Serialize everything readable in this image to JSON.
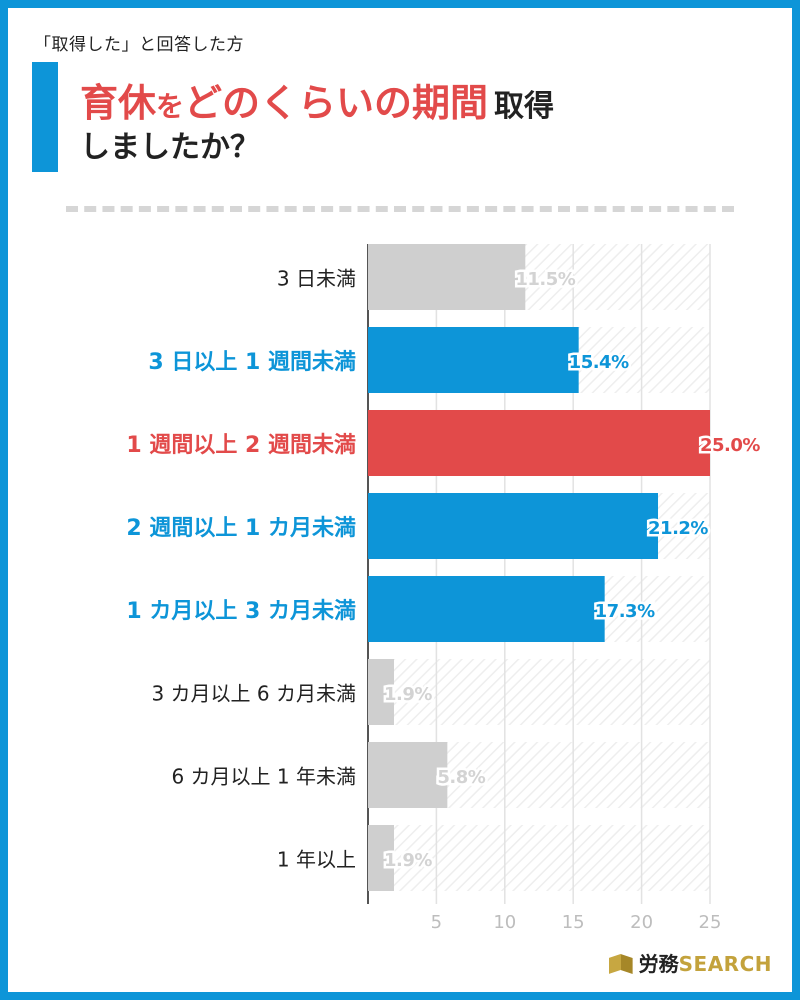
{
  "header": {
    "subtitle": "「取得した」と回答した方",
    "title_part1": "育休",
    "title_part2": "を",
    "title_part3": "どのくらいの期間",
    "title_part4": "取得",
    "title_line2": "しましたか？"
  },
  "colors": {
    "blue": "#0d95d8",
    "red": "#e24a4a",
    "gray": "#cfcfcf",
    "gray_text": "#d3d3d3"
  },
  "chart_data": {
    "type": "bar",
    "orientation": "horizontal",
    "unit": "%",
    "categories": [
      "3 日未満",
      "3 日以上 1 週間未満",
      "1 週間以上 2 週間未満",
      "2 週間以上 1 カ月未満",
      "1 カ月以上 3 カ月未満",
      "3 カ月以上 6 カ月未満",
      "6 カ月以上 1 年未満",
      "1 年以上"
    ],
    "values": [
      11.5,
      15.4,
      25.0,
      21.2,
      17.3,
      1.9,
      5.8,
      1.9
    ],
    "value_labels": [
      "11.5%",
      "15.4%",
      "25.0%",
      "21.2%",
      "17.3%",
      "1.9%",
      "5.8%",
      "1.9%"
    ],
    "highlight": [
      "gray",
      "blue",
      "red",
      "blue",
      "blue",
      "gray",
      "gray",
      "gray"
    ],
    "xlim": [
      0,
      25
    ],
    "ticks": [
      5,
      10,
      15,
      20,
      25
    ],
    "tick_labels": [
      "5",
      "10",
      "15",
      "20",
      "25"
    ],
    "grid": true
  },
  "logo": {
    "jp": "労務",
    "en": "SEARCH"
  }
}
